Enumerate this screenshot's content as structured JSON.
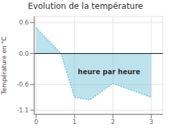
{
  "chart_data": {
    "type": "area",
    "title": "Evolution de la température",
    "ylabel": "Température en °C",
    "annotations": [
      {
        "text": "heure par heure",
        "x": 1.9,
        "y": -0.35
      }
    ],
    "x": [
      0,
      0.65,
      1.0,
      1.4,
      2.0,
      3.0
    ],
    "values": [
      0.5,
      0.0,
      -0.85,
      -0.9,
      -0.58,
      -0.85
    ],
    "color": "#6bbfd8",
    "line_style": "dotted",
    "xlim": [
      -0.05,
      3.3
    ],
    "ylim": [
      -1.18,
      0.72
    ],
    "xticks": [
      0,
      1,
      2,
      3
    ],
    "yticks": [
      -1.1,
      -0.6,
      {
        "value": 0,
        "label": "0.0"
      },
      0.6
    ],
    "grid": true
  }
}
